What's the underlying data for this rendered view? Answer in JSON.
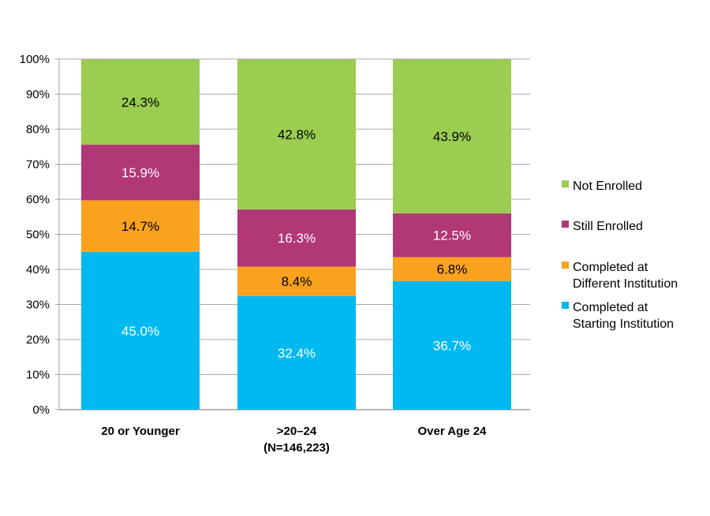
{
  "chart_data": {
    "type": "bar",
    "stacked": true,
    "categories": [
      "20 or Younger",
      ">20–24\n(N=146,223)",
      "Over Age 24"
    ],
    "series": [
      {
        "name": "Completed at Starting Institution",
        "color": "#00B9F1",
        "label_color": "#ffffff",
        "values": [
          45.0,
          32.4,
          36.7
        ]
      },
      {
        "name": "Completed at Different Institution",
        "color": "#F9A21D",
        "label_color": "#000000",
        "values": [
          14.7,
          8.4,
          6.8
        ]
      },
      {
        "name": "Still Enrolled",
        "color": "#B23776",
        "label_color": "#ffffff",
        "values": [
          15.9,
          16.3,
          12.5
        ]
      },
      {
        "name": "Not Enrolled",
        "color": "#9ACD50",
        "label_color": "#000000",
        "values": [
          24.3,
          42.8,
          43.9
        ]
      }
    ],
    "yticks": [
      "0%",
      "10%",
      "20%",
      "30%",
      "40%",
      "50%",
      "60%",
      "70%",
      "80%",
      "90%",
      "100%"
    ],
    "ylim": [
      0,
      100
    ],
    "grid": true,
    "legend": "right",
    "legend_order": [
      "Not Enrolled",
      "Still Enrolled",
      "Completed at Different Institution",
      "Completed at Starting Institution"
    ]
  }
}
